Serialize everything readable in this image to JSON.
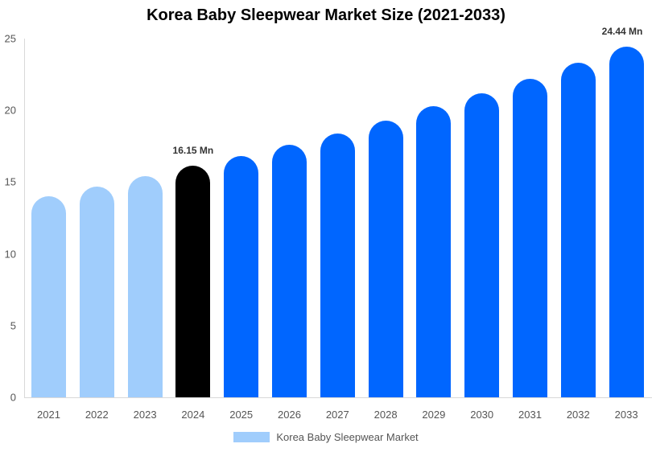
{
  "chart_data": {
    "type": "bar",
    "title": "Korea Baby Sleepwear Market Size (2021-2033)",
    "xlabel": "",
    "ylabel": "",
    "ylim": [
      0,
      25
    ],
    "yticks": [
      0,
      5,
      10,
      15,
      20,
      25
    ],
    "grid": false,
    "legend_position": "bottom",
    "categories": [
      "2021",
      "2022",
      "2023",
      "2024",
      "2025",
      "2026",
      "2027",
      "2028",
      "2029",
      "2030",
      "2031",
      "2032",
      "2033"
    ],
    "series": [
      {
        "name": "Korea Baby Sleepwear Market",
        "values": [
          14.0,
          14.7,
          15.4,
          16.15,
          16.8,
          17.6,
          18.4,
          19.3,
          20.3,
          21.2,
          22.2,
          23.3,
          24.44
        ]
      }
    ],
    "bar_colors": [
      "#a0cdfc",
      "#a0cdfc",
      "#a0cdfc",
      "#000000",
      "#0066ff",
      "#0066ff",
      "#0066ff",
      "#0066ff",
      "#0066ff",
      "#0066ff",
      "#0066ff",
      "#0066ff",
      "#0066ff"
    ],
    "annotations": [
      {
        "category": "2024",
        "text": "16.15 Mn"
      },
      {
        "category": "2033",
        "text": "24.44 Mn"
      }
    ]
  },
  "legend": {
    "label": "Korea Baby Sleepwear Market",
    "color": "#a0cdfc"
  }
}
